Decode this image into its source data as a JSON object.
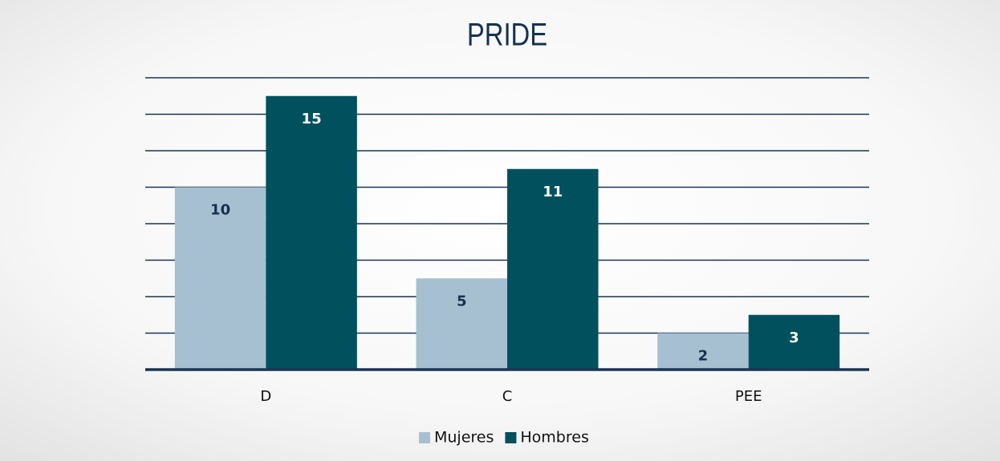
{
  "chart_data": {
    "type": "bar",
    "title": "PRIDE",
    "categories": [
      "D",
      "C",
      "PEE"
    ],
    "series": [
      {
        "name": "Mujeres",
        "color": "#a7c0d1",
        "values": [
          10,
          5,
          2
        ]
      },
      {
        "name": "Hombres",
        "color": "#00505e",
        "values": [
          15,
          11,
          3
        ]
      }
    ],
    "ylim": [
      0,
      16
    ],
    "yticks": [
      0,
      2,
      4,
      6,
      8,
      10,
      12,
      14,
      16
    ],
    "grid": true,
    "legend": "bottom"
  }
}
